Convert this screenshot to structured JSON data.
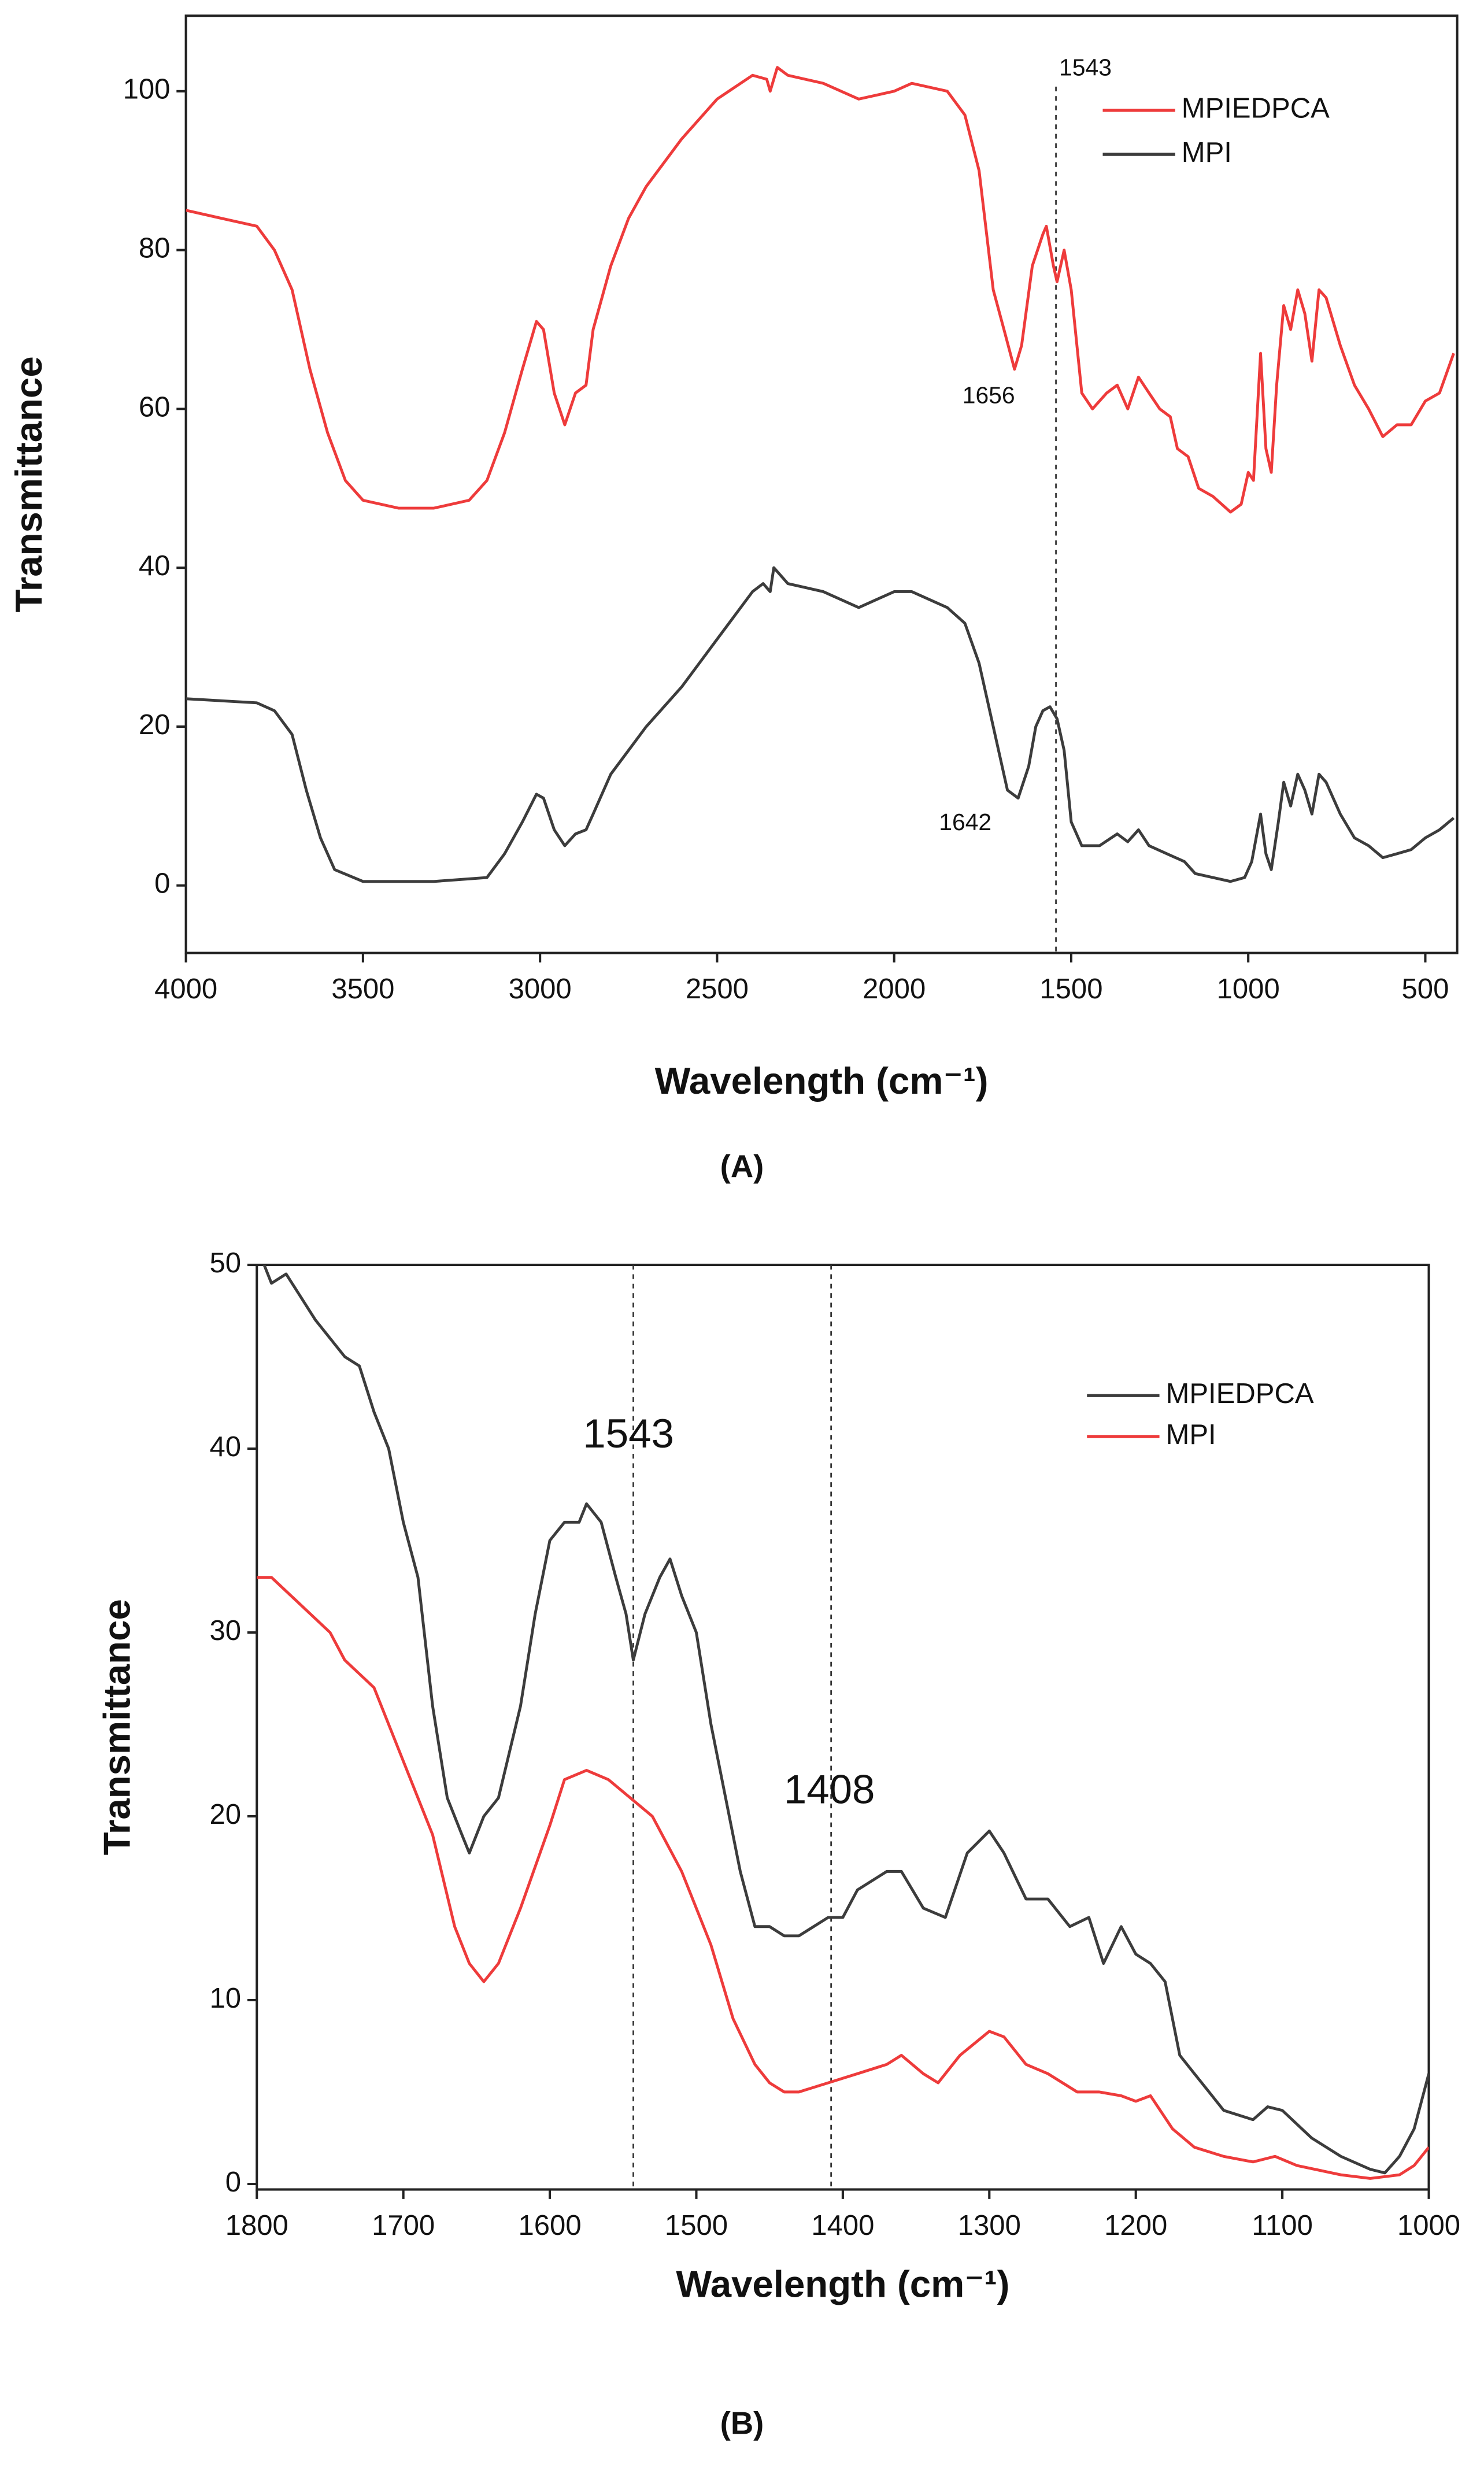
{
  "chart_data": [
    {
      "type": "line",
      "panel": "(A)",
      "xlabel": "Wavelength (cm⁻¹)",
      "ylabel": "Transmittance",
      "xlim": [
        4000,
        410
      ],
      "ylim": [
        -8.5,
        109.5
      ],
      "xticks": [
        4000,
        3500,
        3000,
        2500,
        2000,
        1500,
        1000,
        500
      ],
      "yticks": [
        0,
        20,
        40,
        60,
        80,
        100
      ],
      "legend": "upper right",
      "vlines": [
        1543
      ],
      "annotations": [
        {
          "label": "1543",
          "x": 1543
        },
        {
          "label": "1656",
          "x": 1656
        },
        {
          "label": "1642",
          "x": 1642
        }
      ],
      "series": [
        {
          "name": "MPIEDPCA",
          "color": "#ee3b3b",
          "x": [
            4000,
            3900,
            3800,
            3750,
            3700,
            3650,
            3600,
            3550,
            3500,
            3400,
            3300,
            3200,
            3150,
            3100,
            3050,
            3010,
            2990,
            2960,
            2930,
            2900,
            2870,
            2850,
            2800,
            2750,
            2700,
            2600,
            2500,
            2400,
            2360,
            2350,
            2330,
            2300,
            2200,
            2100,
            2000,
            1950,
            1850,
            1800,
            1760,
            1720,
            1690,
            1660,
            1640,
            1610,
            1580,
            1570,
            1550,
            1540,
            1520,
            1500,
            1470,
            1440,
            1400,
            1370,
            1340,
            1310,
            1280,
            1250,
            1220,
            1200,
            1170,
            1140,
            1100,
            1050,
            1020,
            1000,
            985,
            965,
            950,
            935,
            920,
            900,
            880,
            860,
            840,
            820,
            800,
            780,
            740,
            700,
            660,
            620,
            580,
            540,
            500,
            460,
            420
          ],
          "values": [
            85,
            84,
            83,
            80,
            75,
            65,
            57,
            51,
            48.5,
            47.5,
            47.5,
            48.5,
            51,
            57,
            65,
            71,
            70,
            62,
            58,
            62,
            63,
            70,
            78,
            84,
            88,
            94,
            99,
            102,
            101.5,
            100,
            103,
            102,
            101,
            99,
            100,
            101,
            100,
            97,
            90,
            75,
            70,
            65,
            68,
            78,
            82,
            83,
            78,
            76,
            80,
            75,
            62,
            60,
            62,
            63,
            60,
            64,
            62,
            60,
            59,
            55,
            54,
            50,
            49,
            47,
            48,
            52,
            51,
            67,
            55,
            52,
            63,
            73,
            70,
            75,
            72,
            66,
            75,
            74,
            68,
            63,
            60,
            56.5,
            58,
            58,
            61,
            62,
            67
          ]
        },
        {
          "name": "MPI",
          "color": "#3c3c3c",
          "x": [
            4000,
            3800,
            3750,
            3700,
            3660,
            3620,
            3580,
            3500,
            3300,
            3150,
            3100,
            3050,
            3010,
            2990,
            2960,
            2930,
            2900,
            2870,
            2850,
            2800,
            2700,
            2600,
            2500,
            2400,
            2370,
            2350,
            2340,
            2300,
            2200,
            2100,
            2000,
            1950,
            1850,
            1800,
            1760,
            1720,
            1680,
            1650,
            1620,
            1600,
            1580,
            1560,
            1540,
            1520,
            1500,
            1470,
            1420,
            1370,
            1340,
            1310,
            1280,
            1230,
            1180,
            1150,
            1100,
            1050,
            1010,
            990,
            965,
            950,
            935,
            915,
            900,
            880,
            860,
            840,
            820,
            800,
            780,
            740,
            700,
            660,
            620,
            580,
            540,
            500,
            460,
            420
          ],
          "values": [
            23.5,
            23,
            22,
            19,
            12,
            6,
            2,
            0.5,
            0.5,
            1,
            4,
            8,
            11.5,
            11,
            7,
            5,
            6.5,
            7,
            9,
            14,
            20,
            25,
            31,
            37,
            38,
            37,
            40,
            38,
            37,
            35,
            37,
            37,
            35,
            33,
            28,
            20,
            12,
            11,
            15,
            20,
            22,
            22.5,
            21,
            17,
            8,
            5,
            5,
            6.5,
            5.5,
            7,
            5,
            4,
            3,
            1.5,
            1,
            0.5,
            1,
            3,
            9,
            4,
            2,
            8,
            13,
            10,
            14,
            12,
            9,
            14,
            13,
            9,
            6,
            5,
            3.5,
            4,
            4.5,
            6,
            7,
            8.5
          ]
        }
      ]
    },
    {
      "type": "line",
      "panel": "(B)",
      "xlabel": "Wavelength (cm⁻¹)",
      "ylabel": "Transmittance",
      "xlim": [
        1800,
        1000
      ],
      "ylim": [
        -0.3,
        50
      ],
      "xticks": [
        1800,
        1700,
        1600,
        1500,
        1400,
        1300,
        1200,
        1100,
        1000
      ],
      "yticks": [
        0,
        10,
        20,
        30,
        40,
        50
      ],
      "legend": "upper right",
      "vlines": [
        1543,
        1408
      ],
      "annotations": [
        {
          "label": "1543",
          "x": 1543
        },
        {
          "label": "1408",
          "x": 1408
        }
      ],
      "series": [
        {
          "name": "MPIEDPCA",
          "color": "#3c3c3c",
          "x": [
            1800,
            1790,
            1780,
            1760,
            1740,
            1730,
            1720,
            1710,
            1700,
            1690,
            1680,
            1670,
            1660,
            1655,
            1645,
            1635,
            1620,
            1610,
            1600,
            1590,
            1580,
            1575,
            1565,
            1555,
            1548,
            1543,
            1535,
            1525,
            1518,
            1510,
            1500,
            1490,
            1480,
            1470,
            1460,
            1450,
            1440,
            1430,
            1410,
            1400,
            1390,
            1370,
            1360,
            1345,
            1330,
            1315,
            1300,
            1290,
            1275,
            1260,
            1245,
            1232,
            1222,
            1210,
            1200,
            1190,
            1180,
            1170,
            1160,
            1150,
            1140,
            1120,
            1110,
            1100,
            1080,
            1060,
            1040,
            1030,
            1020,
            1010,
            1000
          ],
          "values": [
            51,
            49,
            49.5,
            47,
            45,
            44.5,
            42,
            40,
            36,
            33,
            26,
            21,
            19,
            18,
            20,
            21,
            26,
            31,
            35,
            36,
            36,
            37,
            36,
            33,
            31,
            28.5,
            31,
            33,
            34,
            32,
            30,
            25,
            21,
            17,
            14,
            14,
            13.5,
            13.5,
            14.5,
            14.5,
            16,
            17,
            17,
            15,
            14.5,
            18,
            19.2,
            18,
            15.5,
            15.5,
            14,
            14.5,
            12,
            14,
            12.5,
            12,
            11,
            7,
            6,
            5,
            4,
            3.5,
            4.2,
            4,
            2.5,
            1.5,
            0.8,
            0.6,
            1.5,
            3,
            6
          ]
        },
        {
          "name": "MPI",
          "color": "#ee3b3b",
          "x": [
            1800,
            1790,
            1770,
            1750,
            1740,
            1720,
            1700,
            1680,
            1665,
            1655,
            1645,
            1635,
            1620,
            1600,
            1590,
            1575,
            1560,
            1545,
            1530,
            1510,
            1490,
            1475,
            1460,
            1450,
            1440,
            1430,
            1410,
            1390,
            1370,
            1360,
            1345,
            1335,
            1320,
            1300,
            1290,
            1275,
            1260,
            1240,
            1225,
            1210,
            1200,
            1190,
            1175,
            1160,
            1140,
            1120,
            1105,
            1090,
            1060,
            1040,
            1020,
            1010,
            1000
          ],
          "values": [
            33,
            33,
            31.5,
            30,
            28.5,
            27,
            23,
            19,
            14,
            12,
            11,
            12,
            15,
            19.5,
            22,
            22.5,
            22,
            21,
            20,
            17,
            13,
            9,
            6.5,
            5.5,
            5,
            5,
            5.5,
            6,
            6.5,
            7,
            6,
            5.5,
            7,
            8.3,
            8,
            6.5,
            6,
            5,
            5,
            4.8,
            4.5,
            4.8,
            3,
            2,
            1.5,
            1.2,
            1.5,
            1,
            0.5,
            0.3,
            0.5,
            1,
            2
          ]
        }
      ]
    }
  ]
}
